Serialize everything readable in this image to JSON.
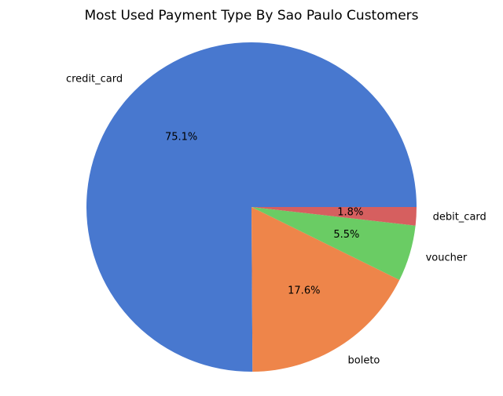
{
  "chart_data": {
    "type": "pie",
    "title": "Most Used Payment Type By Sao Paulo Customers",
    "start_angle": 0,
    "direction": "counterclockwise",
    "slices": [
      {
        "label": "credit_card",
        "value": 75.1,
        "pct_label": "75.1%",
        "color": "#4878cf"
      },
      {
        "label": "boleto",
        "value": 17.6,
        "pct_label": "17.6%",
        "color": "#ee854a"
      },
      {
        "label": "voucher",
        "value": 5.5,
        "pct_label": "5.5%",
        "color": "#6acc64"
      },
      {
        "label": "debit_card",
        "value": 1.8,
        "pct_label": "1.8%",
        "color": "#d65f5f"
      }
    ]
  }
}
